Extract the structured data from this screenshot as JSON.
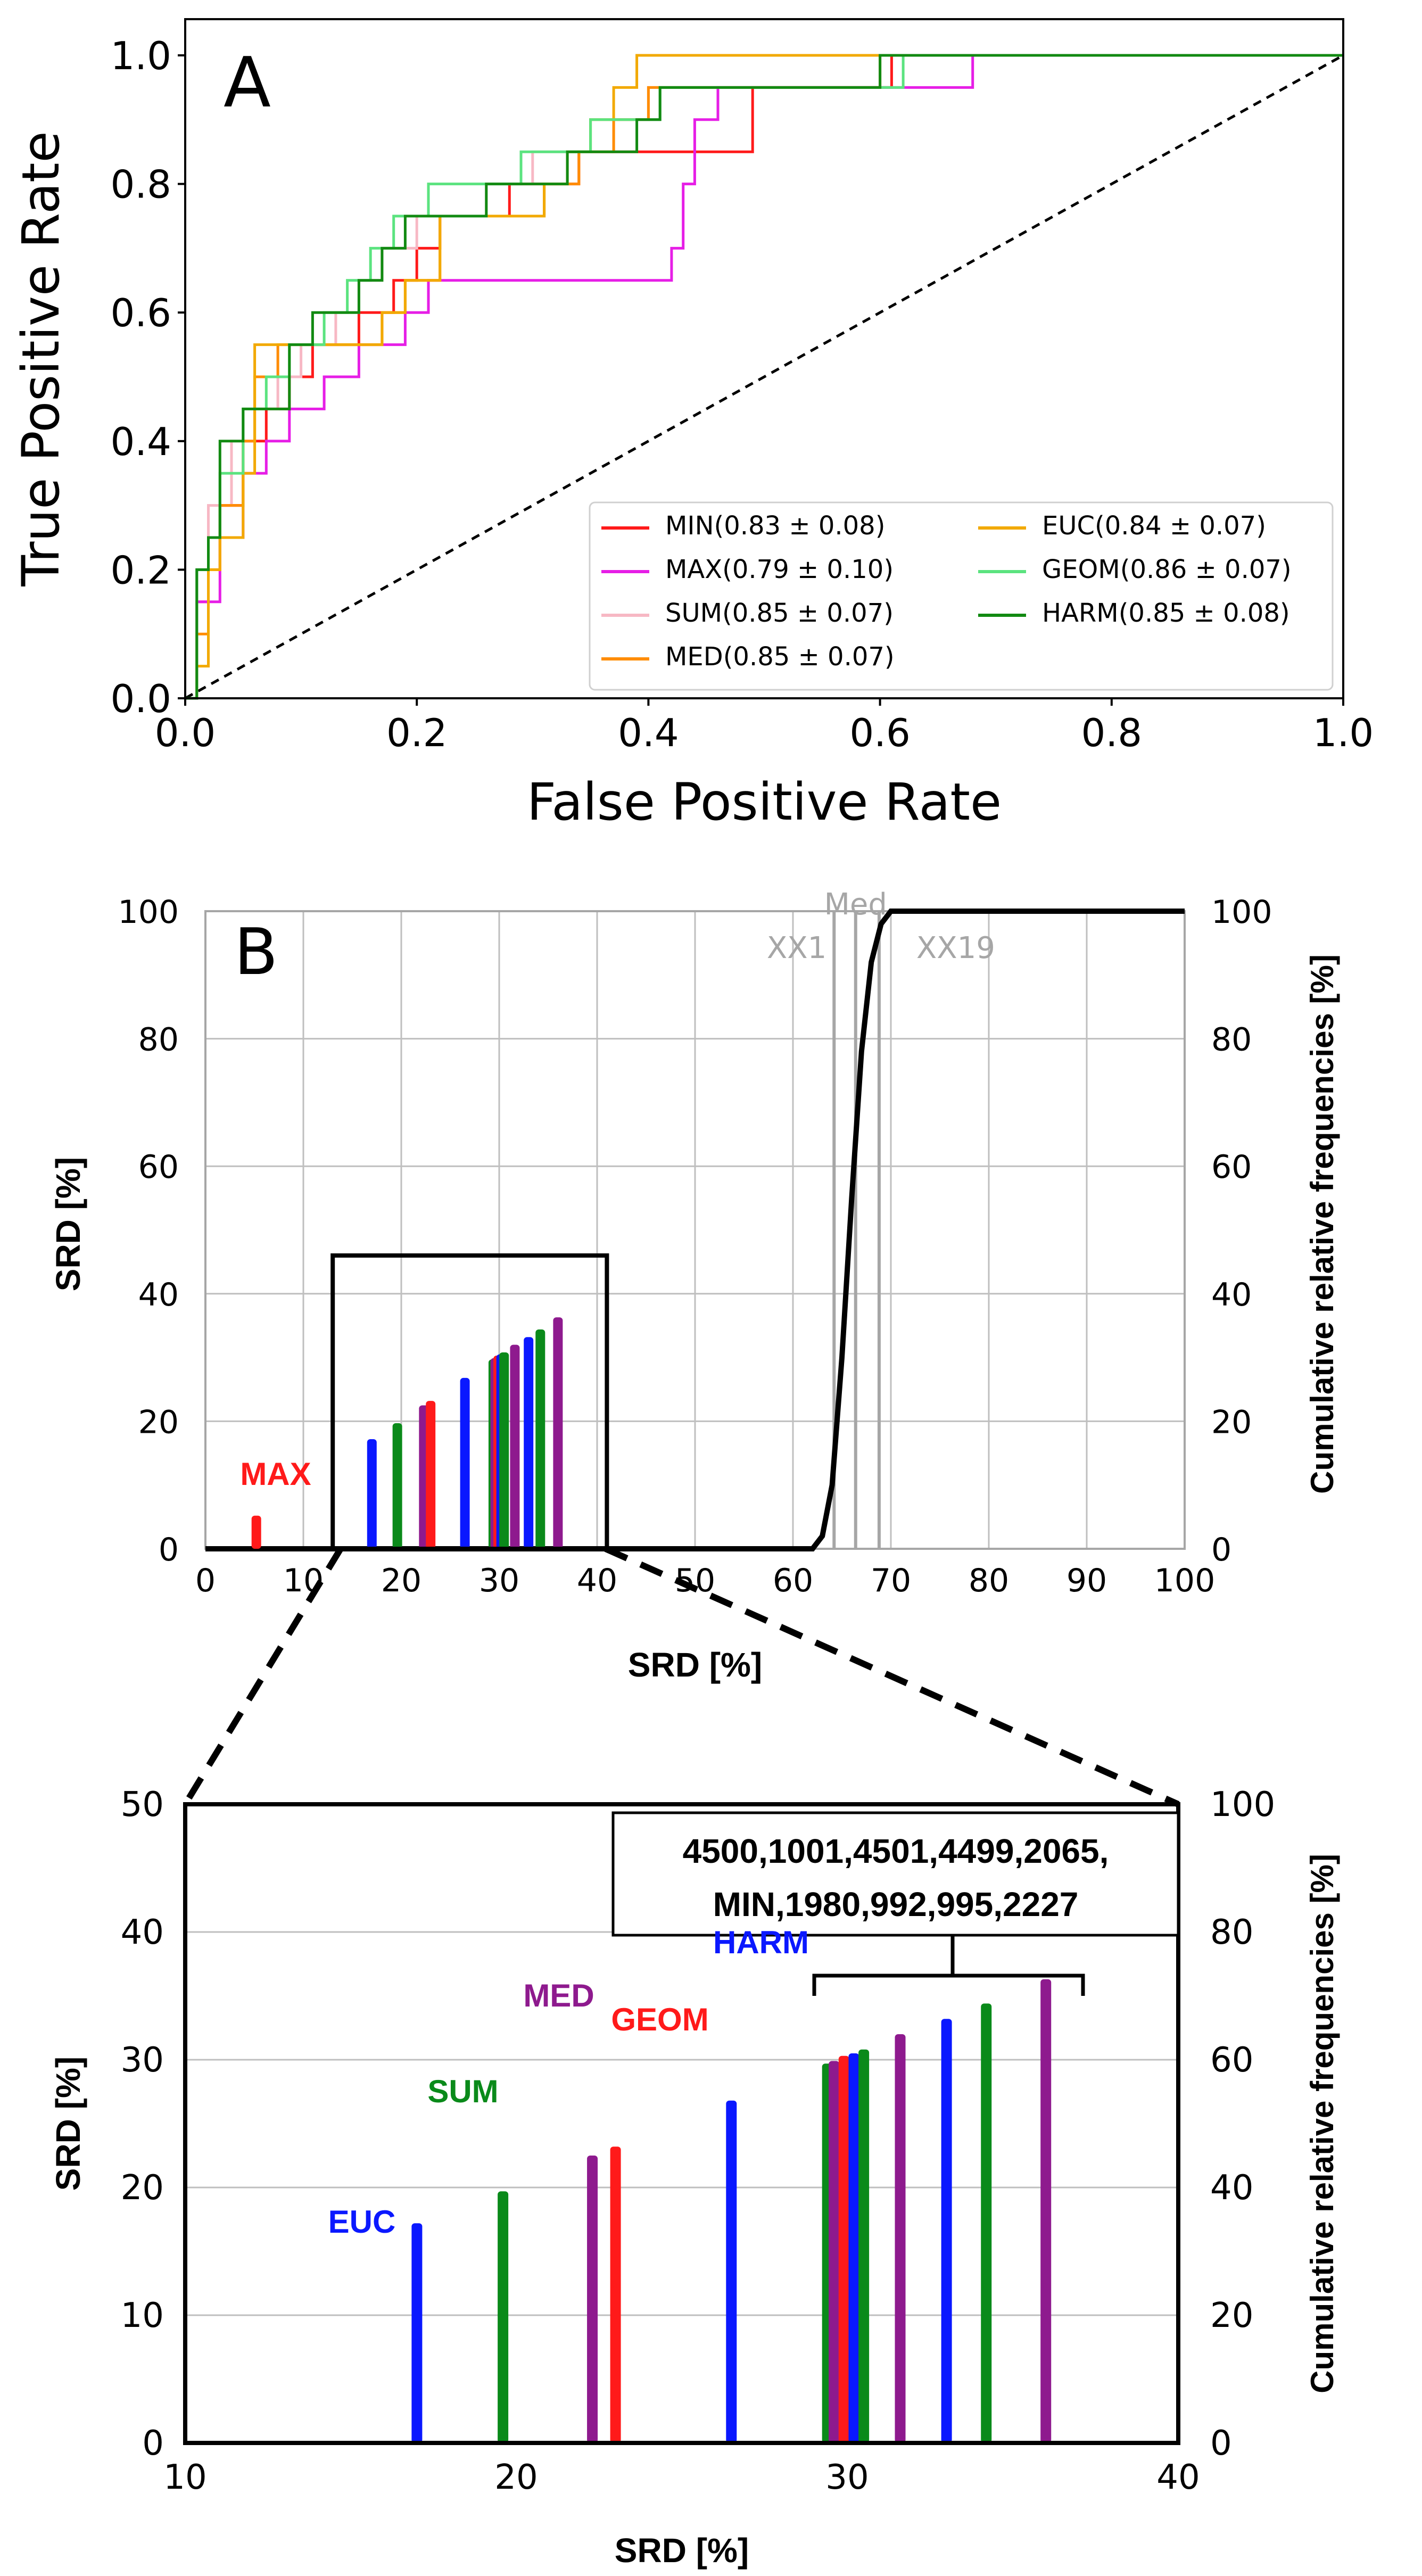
{
  "chart_data": [
    {
      "panel": "A",
      "type": "line",
      "title": "",
      "xlabel": "False Positive Rate",
      "ylabel": "True Positive Rate",
      "xlim": [
        0.0,
        1.0
      ],
      "ylim": [
        0.0,
        1.0
      ],
      "xticks": [
        "0.0",
        "0.2",
        "0.4",
        "0.6",
        "0.8",
        "1.0"
      ],
      "yticks": [
        "0.0",
        "0.2",
        "0.4",
        "0.6",
        "0.8",
        "1.0"
      ],
      "legend_position": "lower-right",
      "reference_line": {
        "style": "dashed",
        "color": "#000000",
        "x": [
          0,
          1
        ],
        "y": [
          0,
          1
        ]
      },
      "series": [
        {
          "name": "MIN",
          "label": "MIN(0.83 ± 0.08)",
          "color": "#ff1a1a",
          "x": [
            0,
            0.01,
            0.02,
            0.03,
            0.05,
            0.07,
            0.09,
            0.11,
            0.13,
            0.15,
            0.18,
            0.2,
            0.22,
            0.25,
            0.28,
            0.31,
            0.34,
            0.37,
            0.4,
            0.45,
            0.49,
            0.5,
            0.58,
            0.61,
            1.0
          ],
          "y": [
            0,
            0.15,
            0.25,
            0.3,
            0.4,
            0.45,
            0.5,
            0.55,
            0.55,
            0.6,
            0.65,
            0.7,
            0.75,
            0.75,
            0.8,
            0.8,
            0.85,
            0.85,
            0.85,
            0.85,
            0.95,
            0.95,
            0.95,
            1.0,
            1.0
          ]
        },
        {
          "name": "MAX",
          "label": "MAX(0.79 ± 0.10)",
          "color": "#e61ee6",
          "x": [
            0,
            0.01,
            0.03,
            0.05,
            0.07,
            0.09,
            0.12,
            0.15,
            0.19,
            0.21,
            0.23,
            0.3,
            0.35,
            0.4,
            0.42,
            0.43,
            0.44,
            0.46,
            0.5,
            0.6,
            0.63,
            0.67,
            0.68,
            1.0
          ],
          "y": [
            0,
            0.15,
            0.25,
            0.35,
            0.4,
            0.45,
            0.5,
            0.55,
            0.6,
            0.65,
            0.65,
            0.65,
            0.65,
            0.65,
            0.7,
            0.8,
            0.9,
            0.95,
            0.95,
            0.95,
            0.95,
            0.95,
            1.0,
            1.0
          ]
        },
        {
          "name": "SUM",
          "label": "SUM(0.85 ± 0.07)",
          "color": "#f7b8c4",
          "x": [
            0,
            0.01,
            0.02,
            0.04,
            0.06,
            0.08,
            0.1,
            0.13,
            0.15,
            0.17,
            0.2,
            0.22,
            0.26,
            0.3,
            0.34,
            0.37,
            0.4,
            0.43,
            0.45,
            0.58,
            0.6,
            1.0
          ],
          "y": [
            0,
            0.2,
            0.3,
            0.4,
            0.45,
            0.5,
            0.55,
            0.6,
            0.65,
            0.7,
            0.75,
            0.75,
            0.8,
            0.85,
            0.85,
            0.9,
            0.95,
            0.95,
            0.95,
            0.95,
            1.0,
            1.0
          ]
        },
        {
          "name": "MED",
          "label": "MED(0.85 ± 0.07)",
          "color": "#ff8c00",
          "x": [
            0,
            0.01,
            0.02,
            0.03,
            0.05,
            0.06,
            0.08,
            0.11,
            0.14,
            0.17,
            0.19,
            0.22,
            0.27,
            0.31,
            0.34,
            0.37,
            0.4,
            0.45,
            0.5,
            0.58,
            0.6,
            1.0
          ],
          "y": [
            0,
            0.1,
            0.2,
            0.3,
            0.4,
            0.5,
            0.55,
            0.55,
            0.55,
            0.6,
            0.65,
            0.75,
            0.75,
            0.8,
            0.85,
            0.9,
            0.95,
            0.95,
            0.95,
            0.95,
            1.0,
            1.0
          ]
        },
        {
          "name": "EUC",
          "label": "EUC(0.84 ± 0.07)",
          "color": "#f2a900",
          "x": [
            0,
            0.01,
            0.02,
            0.03,
            0.05,
            0.06,
            0.08,
            0.11,
            0.14,
            0.17,
            0.19,
            0.22,
            0.27,
            0.31,
            0.33,
            0.35,
            0.37,
            0.39,
            0.45,
            0.52,
            0.58,
            0.6,
            1.0
          ],
          "y": [
            0,
            0.05,
            0.2,
            0.25,
            0.35,
            0.55,
            0.55,
            0.55,
            0.55,
            0.6,
            0.65,
            0.75,
            0.75,
            0.8,
            0.85,
            0.9,
            0.95,
            1.0,
            1.0,
            1.0,
            1.0,
            1.0,
            1.0
          ]
        },
        {
          "name": "GEOM",
          "label": "GEOM(0.86 ± 0.07)",
          "color": "#5be37f",
          "x": [
            0,
            0.01,
            0.02,
            0.03,
            0.05,
            0.07,
            0.09,
            0.12,
            0.14,
            0.16,
            0.18,
            0.21,
            0.25,
            0.29,
            0.32,
            0.35,
            0.38,
            0.41,
            0.45,
            0.58,
            0.62,
            1.0
          ],
          "y": [
            0,
            0.2,
            0.25,
            0.35,
            0.45,
            0.5,
            0.55,
            0.6,
            0.65,
            0.7,
            0.75,
            0.8,
            0.8,
            0.85,
            0.85,
            0.9,
            0.9,
            0.95,
            0.95,
            0.95,
            1.0,
            1.0
          ]
        },
        {
          "name": "HARM",
          "label": "HARM(0.85 ± 0.08)",
          "color": "#128a12",
          "x": [
            0,
            0.01,
            0.02,
            0.03,
            0.05,
            0.07,
            0.09,
            0.11,
            0.13,
            0.15,
            0.17,
            0.19,
            0.23,
            0.26,
            0.3,
            0.33,
            0.36,
            0.39,
            0.41,
            0.45,
            0.6,
            1.0
          ],
          "y": [
            0,
            0.2,
            0.25,
            0.4,
            0.45,
            0.45,
            0.55,
            0.6,
            0.6,
            0.65,
            0.7,
            0.75,
            0.75,
            0.8,
            0.8,
            0.85,
            0.85,
            0.9,
            0.95,
            0.95,
            1.0,
            1.0
          ]
        }
      ]
    },
    {
      "panel": "B",
      "type": "bar",
      "xlabel": "SRD [%]",
      "ylabel": "SRD [%]",
      "ylabel_right": "Cumulative relative frequencies [%]",
      "xlim": [
        0,
        100
      ],
      "ylim": [
        0,
        100
      ],
      "ylim_right": [
        0,
        100
      ],
      "xticks": [
        "0",
        "10",
        "20",
        "30",
        "40",
        "50",
        "60",
        "70",
        "80",
        "90",
        "100"
      ],
      "yticks": [
        "0",
        "20",
        "40",
        "60",
        "80",
        "100"
      ],
      "yticks_right": [
        "0",
        "20",
        "40",
        "60",
        "80",
        "100"
      ],
      "grid": true,
      "zoom_box": {
        "x": [
          13,
          41
        ],
        "y": [
          0,
          46
        ]
      },
      "annotations": [
        {
          "text": "MAX",
          "color": "#ff1a1a"
        }
      ],
      "reference_lines": [
        {
          "label": "XX1",
          "x": 64.2,
          "color": "#a6a6a6"
        },
        {
          "label": "Med",
          "x": 66.4,
          "color": "#a6a6a6"
        },
        {
          "label": "XX19",
          "x": 68.8,
          "color": "#a6a6a6"
        }
      ],
      "bars": [
        {
          "name": "MAX",
          "x": 5.2,
          "value": 5.2,
          "color": "#ff1a1a"
        },
        {
          "name": "EUC",
          "x": 17.0,
          "value": 17.2,
          "color": "#0a18ff"
        },
        {
          "name": "SUM",
          "x": 19.6,
          "value": 19.7,
          "color": "#0a8a1a"
        },
        {
          "name": "MED",
          "x": 22.3,
          "value": 22.5,
          "color": "#8e1a8e"
        },
        {
          "name": "GEOM",
          "x": 23.0,
          "value": 23.2,
          "color": "#ff1a1a"
        },
        {
          "name": "HARM",
          "x": 26.5,
          "value": 26.8,
          "color": "#0a18ff"
        },
        {
          "name": "4500",
          "x": 29.4,
          "value": 29.7,
          "color": "#0a8a1a"
        },
        {
          "name": "1001",
          "x": 29.6,
          "value": 29.9,
          "color": "#8e1a8e"
        },
        {
          "name": "4501",
          "x": 29.9,
          "value": 30.3,
          "color": "#ff1a1a"
        },
        {
          "name": "4499",
          "x": 30.2,
          "value": 30.5,
          "color": "#0a18ff"
        },
        {
          "name": "2065",
          "x": 30.5,
          "value": 30.8,
          "color": "#0a8a1a"
        },
        {
          "name": "MIN",
          "x": 31.6,
          "value": 32.0,
          "color": "#8e1a8e"
        },
        {
          "name": "1980",
          "x": 33.0,
          "value": 33.2,
          "color": "#0a18ff"
        },
        {
          "name": "992",
          "x": 34.2,
          "value": 34.4,
          "color": "#0a8a1a"
        },
        {
          "name": "995",
          "x": 36.0,
          "value": 36.3,
          "color": "#8e1a8e"
        }
      ],
      "cumulative_curve": {
        "color": "#000000",
        "x": [
          0,
          62,
          63,
          64,
          65,
          66,
          67,
          68,
          69,
          70,
          100
        ],
        "y": [
          0,
          0,
          2,
          10,
          30,
          55,
          78,
          92,
          98,
          100,
          100
        ]
      }
    },
    {
      "panel": "B-zoom",
      "type": "bar",
      "xlabel": "SRD [%]",
      "ylabel": "SRD [%]",
      "ylabel_right": "Cumulative relative frequencies [%]",
      "xlim": [
        10,
        40
      ],
      "ylim": [
        0,
        50
      ],
      "ylim_right": [
        0,
        100
      ],
      "xticks": [
        "10",
        "20",
        "30",
        "40"
      ],
      "yticks": [
        "0",
        "10",
        "20",
        "30",
        "40",
        "50"
      ],
      "yticks_right": [
        "0",
        "20",
        "40",
        "60",
        "80",
        "100"
      ],
      "grid": true,
      "callout_lines": [
        "4500,1001,4501,4499,2065,",
        "MIN,1980,992,995,2227"
      ],
      "bar_labels": [
        {
          "text": "EUC",
          "color": "#0a18ff"
        },
        {
          "text": "SUM",
          "color": "#0a8a1a"
        },
        {
          "text": "MED",
          "color": "#8e1a8e"
        },
        {
          "text": "GEOM",
          "color": "#ff1a1a"
        },
        {
          "text": "HARM",
          "color": "#0a18ff"
        }
      ],
      "bars": [
        {
          "name": "EUC",
          "x": 17.0,
          "value": 17.2,
          "color": "#0a18ff"
        },
        {
          "name": "SUM",
          "x": 19.6,
          "value": 19.7,
          "color": "#0a8a1a"
        },
        {
          "name": "MED",
          "x": 22.3,
          "value": 22.5,
          "color": "#8e1a8e"
        },
        {
          "name": "GEOM",
          "x": 23.0,
          "value": 23.2,
          "color": "#ff1a1a"
        },
        {
          "name": "HARM",
          "x": 26.5,
          "value": 26.8,
          "color": "#0a18ff"
        },
        {
          "name": "4500",
          "x": 29.4,
          "value": 29.7,
          "color": "#0a8a1a"
        },
        {
          "name": "1001",
          "x": 29.6,
          "value": 29.9,
          "color": "#8e1a8e"
        },
        {
          "name": "4501",
          "x": 29.9,
          "value": 30.3,
          "color": "#ff1a1a"
        },
        {
          "name": "4499",
          "x": 30.2,
          "value": 30.5,
          "color": "#0a18ff"
        },
        {
          "name": "2065",
          "x": 30.5,
          "value": 30.8,
          "color": "#0a8a1a"
        },
        {
          "name": "MIN",
          "x": 31.6,
          "value": 32.0,
          "color": "#8e1a8e"
        },
        {
          "name": "1980",
          "x": 33.0,
          "value": 33.2,
          "color": "#0a18ff"
        },
        {
          "name": "992",
          "x": 34.2,
          "value": 34.4,
          "color": "#0a8a1a"
        },
        {
          "name": "995",
          "x": 36.0,
          "value": 36.3,
          "color": "#8e1a8e"
        }
      ]
    }
  ]
}
